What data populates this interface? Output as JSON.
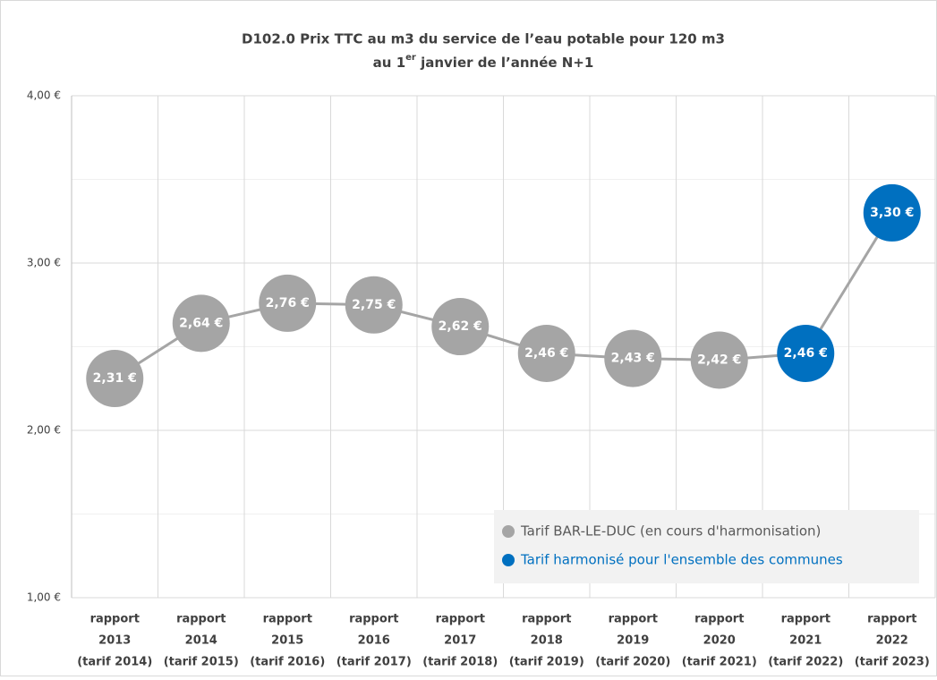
{
  "chart_data": {
    "type": "line",
    "title": {
      "line1": "D102.0  Prix TTC au m3 du service de l’eau potable pour 120 m3",
      "line2": [
        "au 1",
        "er",
        " janvier de l’année N+1"
      ]
    },
    "categories": [
      [
        "rapport",
        "2013",
        "(tarif 2014)"
      ],
      [
        "rapport",
        "2014",
        "(tarif 2015)"
      ],
      [
        "rapport",
        "2015",
        "(tarif 2016)"
      ],
      [
        "rapport",
        "2016",
        "(tarif 2017)"
      ],
      [
        "rapport",
        "2017",
        "(tarif 2018)"
      ],
      [
        "rapport",
        "2018",
        "(tarif 2019)"
      ],
      [
        "rapport",
        "2019",
        "(tarif 2020)"
      ],
      [
        "rapport",
        "2020",
        "(tarif 2021)"
      ],
      [
        "rapport",
        "2021",
        "(tarif 2022)"
      ],
      [
        "rapport",
        "2022",
        "(tarif 2023)"
      ]
    ],
    "series": [
      {
        "name": "Tarif BAR-LE-DUC (en cours d'harmonisation)",
        "color": "#a5a5a5",
        "values": [
          2.31,
          2.64,
          2.76,
          2.75,
          2.62,
          2.46,
          2.43,
          2.42,
          null,
          null
        ],
        "value_labels": [
          "2,31 €",
          "2,64 €",
          "2,76 €",
          "2,75 €",
          "2,62 €",
          "2,46 €",
          "2,43 €",
          "2,42 €",
          null,
          null
        ]
      },
      {
        "name": "Tarif harmonisé pour l'ensemble des communes",
        "color": "#0070c0",
        "values": [
          null,
          null,
          null,
          null,
          null,
          null,
          null,
          null,
          2.46,
          3.3
        ],
        "value_labels": [
          null,
          null,
          null,
          null,
          null,
          null,
          null,
          null,
          "2,46 €",
          "3,30 €"
        ]
      }
    ],
    "line_color": "#a5a5a5",
    "ylim": [
      1,
      4
    ],
    "yticks": [
      {
        "value": 1,
        "label": "1,00 €"
      },
      {
        "value": 2,
        "label": "2,00 €"
      },
      {
        "value": 3,
        "label": "3,00 €"
      },
      {
        "value": 4,
        "label": "4,00 €"
      }
    ],
    "minor_yticks": [
      1.5,
      2.5,
      3.5
    ],
    "grid": true,
    "legend": "lower right"
  }
}
